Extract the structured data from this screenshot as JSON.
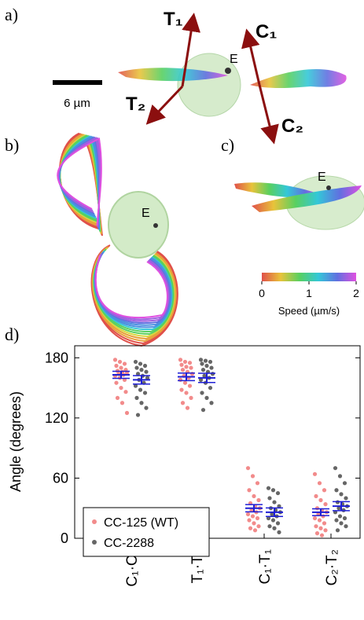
{
  "panels": {
    "a": "a)",
    "b": "b)",
    "c": "c)",
    "d": "d)"
  },
  "panel_a": {
    "arrows": [
      "T₁",
      "T₂",
      "C₁",
      "C₂"
    ],
    "cell": "E",
    "scale_bar": "6 µm"
  },
  "panel_b": {
    "cell": "E"
  },
  "panel_c": {
    "cell": "E"
  },
  "colorbar": {
    "lim": [
      0,
      2
    ],
    "ticks": [
      0,
      1,
      2
    ],
    "label": "Speed (µm/s)"
  },
  "chart_data": {
    "type": "strip",
    "ylabel": "Angle (degrees)",
    "categories": [
      "C₁·C₂",
      "T₁·T₂",
      "C₁·T₁",
      "C₂·T₂"
    ],
    "ylim": [
      0,
      192
    ],
    "yticks": [
      0,
      60,
      120,
      180
    ],
    "legend": "lower left",
    "error_color": "#1f1fd6",
    "series": [
      {
        "name": "CC-125 (WT)",
        "color": "#f28b8b",
        "values": [
          [
            178,
            176,
            174,
            172,
            170,
            168,
            167,
            166,
            165,
            164,
            163,
            162,
            160,
            158,
            155,
            150,
            146,
            140,
            135,
            125
          ],
          [
            178,
            176,
            175,
            173,
            171,
            170,
            168,
            166,
            164,
            162,
            160,
            158,
            155,
            152,
            148,
            145,
            140,
            135,
            130
          ],
          [
            70,
            62,
            55,
            48,
            42,
            38,
            35,
            32,
            30,
            28,
            26,
            24,
            22,
            20,
            18,
            15,
            12,
            10,
            8
          ],
          [
            64,
            55,
            48,
            42,
            38,
            34,
            30,
            28,
            26,
            24,
            22,
            20,
            18,
            15,
            12,
            10,
            8,
            5,
            3
          ]
        ],
        "mean": [
          163,
          161,
          30,
          26
        ],
        "sem": [
          3.5,
          3.8,
          3.6,
          3.4
        ]
      },
      {
        "name": "CC-2288",
        "color": "#666666",
        "values": [
          [
            176,
            174,
            172,
            170,
            168,
            166,
            164,
            162,
            160,
            158,
            155,
            152,
            148,
            145,
            140,
            135,
            130,
            123
          ],
          [
            178,
            177,
            176,
            174,
            172,
            170,
            168,
            166,
            164,
            162,
            160,
            158,
            155,
            150,
            145,
            140,
            135,
            128
          ],
          [
            50,
            48,
            45,
            40,
            36,
            32,
            30,
            28,
            26,
            24,
            22,
            20,
            18,
            15,
            12,
            10,
            6
          ],
          [
            70,
            62,
            55,
            48,
            44,
            40,
            36,
            34,
            32,
            30,
            28,
            26,
            22,
            20,
            18,
            15,
            12,
            8
          ]
        ],
        "mean": [
          158,
          160,
          26,
          32
        ],
        "sem": [
          4.2,
          4.6,
          4.3,
          4.5
        ]
      }
    ]
  }
}
